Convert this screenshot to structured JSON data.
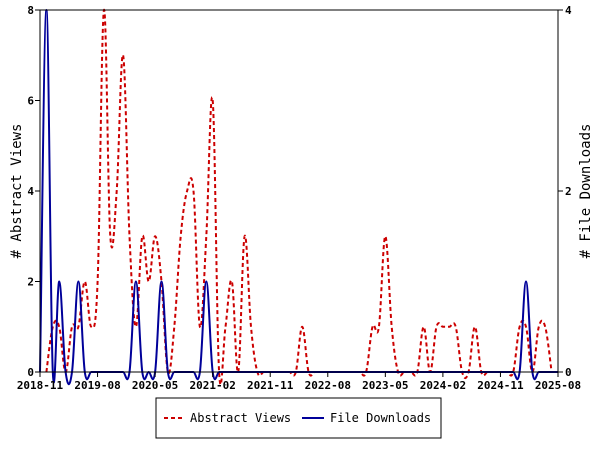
{
  "chart_data": {
    "type": "line",
    "x_tick_labels": [
      "2018-11",
      "2019-08",
      "2020-05",
      "2021-02",
      "2021-11",
      "2022-08",
      "2023-05",
      "2024-02",
      "2024-11",
      "2025-08"
    ],
    "y_left": {
      "label": "# Abstract Views",
      "ticks": [
        "0",
        "2",
        "4",
        "6",
        "8"
      ],
      "ylim": [
        0,
        8
      ]
    },
    "y_right": {
      "label": "# File Downloads",
      "ticks": [
        "0",
        "2",
        "4"
      ],
      "ylim": [
        0,
        4
      ]
    },
    "grid": false,
    "legend_position": "bottom",
    "series": [
      {
        "name": "Abstract Views",
        "axis": "left",
        "color": "#cc0000",
        "style": "dashed",
        "points": [
          [
            "2018-12",
            0
          ],
          [
            "2019-01",
            1
          ],
          [
            "2019-02",
            1
          ],
          [
            "2019-03",
            0
          ],
          [
            "2019-04",
            1
          ],
          [
            "2019-05",
            1
          ],
          [
            "2019-06",
            2
          ],
          [
            "2019-07",
            1
          ],
          [
            "2019-08",
            2
          ],
          [
            "2019-09",
            8
          ],
          [
            "2019-10",
            3
          ],
          [
            "2019-11",
            4
          ],
          [
            "2019-12",
            7
          ],
          [
            "2020-01",
            3
          ],
          [
            "2020-02",
            1
          ],
          [
            "2020-03",
            3
          ],
          [
            "2020-04",
            2
          ],
          [
            "2020-05",
            3
          ],
          [
            "2020-06",
            2
          ],
          [
            "2020-07",
            0
          ],
          [
            "2020-08",
            1
          ],
          [
            "2020-09",
            3
          ],
          [
            "2020-10",
            4
          ],
          [
            "2020-11",
            4
          ],
          [
            "2020-12",
            1
          ],
          [
            "2021-01",
            3
          ],
          [
            "2021-02",
            6
          ],
          [
            "2021-03",
            0
          ],
          [
            "2021-04",
            1
          ],
          [
            "2021-05",
            2
          ],
          [
            "2021-06",
            0
          ],
          [
            "2021-07",
            3
          ],
          [
            "2021-08",
            1
          ],
          [
            "2021-09",
            0
          ],
          [
            "2021-10",
            0
          ],
          [
            "2021-11",
            0
          ],
          [
            "2021-12",
            0
          ],
          [
            "2022-01",
            0
          ],
          [
            "2022-02",
            0
          ],
          [
            "2022-03",
            0
          ],
          [
            "2022-04",
            1
          ],
          [
            "2022-05",
            0
          ],
          [
            "2022-06",
            0
          ],
          [
            "2022-07",
            0
          ],
          [
            "2022-08",
            0
          ],
          [
            "2022-09",
            0
          ],
          [
            "2022-10",
            0
          ],
          [
            "2022-11",
            0
          ],
          [
            "2022-12",
            0
          ],
          [
            "2023-01",
            0
          ],
          [
            "2023-02",
            0
          ],
          [
            "2023-03",
            1
          ],
          [
            "2023-04",
            1
          ],
          [
            "2023-05",
            3
          ],
          [
            "2023-06",
            1
          ],
          [
            "2023-07",
            0
          ],
          [
            "2023-08",
            0
          ],
          [
            "2023-09",
            0
          ],
          [
            "2023-10",
            0
          ],
          [
            "2023-11",
            1
          ],
          [
            "2023-12",
            0
          ],
          [
            "2024-01",
            1
          ],
          [
            "2024-02",
            1
          ],
          [
            "2024-03",
            1
          ],
          [
            "2024-04",
            1
          ],
          [
            "2024-05",
            0
          ],
          [
            "2024-06",
            0
          ],
          [
            "2024-07",
            1
          ],
          [
            "2024-08",
            0
          ],
          [
            "2024-09",
            0
          ],
          [
            "2024-10",
            0
          ],
          [
            "2024-11",
            0
          ],
          [
            "2024-12",
            0
          ],
          [
            "2025-01",
            0
          ],
          [
            "2025-02",
            1
          ],
          [
            "2025-03",
            1
          ],
          [
            "2025-04",
            0
          ],
          [
            "2025-05",
            1
          ],
          [
            "2025-06",
            1
          ],
          [
            "2025-07",
            0
          ]
        ]
      },
      {
        "name": "File Downloads",
        "axis": "right",
        "color": "#000099",
        "style": "solid",
        "points": [
          [
            "2018-11",
            0
          ],
          [
            "2018-12",
            4
          ],
          [
            "2019-01",
            0
          ],
          [
            "2019-02",
            1
          ],
          [
            "2019-03",
            0
          ],
          [
            "2019-04",
            0
          ],
          [
            "2019-05",
            1
          ],
          [
            "2019-06",
            0
          ],
          [
            "2019-07",
            0
          ],
          [
            "2019-08",
            0
          ],
          [
            "2019-09",
            0
          ],
          [
            "2019-10",
            0
          ],
          [
            "2019-11",
            0
          ],
          [
            "2019-12",
            0
          ],
          [
            "2020-01",
            0
          ],
          [
            "2020-02",
            1
          ],
          [
            "2020-03",
            0
          ],
          [
            "2020-04",
            0
          ],
          [
            "2020-05",
            0
          ],
          [
            "2020-06",
            1
          ],
          [
            "2020-07",
            0
          ],
          [
            "2020-08",
            0
          ],
          [
            "2020-09",
            0
          ],
          [
            "2020-10",
            0
          ],
          [
            "2020-11",
            0
          ],
          [
            "2020-12",
            0
          ],
          [
            "2021-01",
            1
          ],
          [
            "2021-02",
            0
          ],
          [
            "2021-03",
            0
          ],
          [
            "2021-04",
            0
          ],
          [
            "2021-05",
            0
          ],
          [
            "2021-06",
            0
          ],
          [
            "2021-07",
            0
          ],
          [
            "2021-08",
            0
          ],
          [
            "2021-09",
            0
          ],
          [
            "2021-10",
            0
          ],
          [
            "2021-11",
            0
          ],
          [
            "2021-12",
            0
          ],
          [
            "2022-01",
            0
          ],
          [
            "2022-02",
            0
          ],
          [
            "2022-03",
            0
          ],
          [
            "2022-04",
            0
          ],
          [
            "2022-05",
            0
          ],
          [
            "2022-06",
            0
          ],
          [
            "2022-07",
            0
          ],
          [
            "2022-08",
            0
          ],
          [
            "2022-09",
            0
          ],
          [
            "2022-10",
            0
          ],
          [
            "2022-11",
            0
          ],
          [
            "2022-12",
            0
          ],
          [
            "2023-01",
            0
          ],
          [
            "2023-02",
            0
          ],
          [
            "2023-03",
            0
          ],
          [
            "2023-04",
            0
          ],
          [
            "2023-05",
            0
          ],
          [
            "2023-06",
            0
          ],
          [
            "2023-07",
            0
          ],
          [
            "2023-08",
            0
          ],
          [
            "2023-09",
            0
          ],
          [
            "2023-10",
            0
          ],
          [
            "2023-11",
            0
          ],
          [
            "2023-12",
            0
          ],
          [
            "2024-01",
            0
          ],
          [
            "2024-02",
            0
          ],
          [
            "2024-03",
            0
          ],
          [
            "2024-04",
            0
          ],
          [
            "2024-05",
            0
          ],
          [
            "2024-06",
            0
          ],
          [
            "2024-07",
            0
          ],
          [
            "2024-08",
            0
          ],
          [
            "2024-09",
            0
          ],
          [
            "2024-10",
            0
          ],
          [
            "2024-11",
            0
          ],
          [
            "2024-12",
            0
          ],
          [
            "2025-01",
            0
          ],
          [
            "2025-02",
            0
          ],
          [
            "2025-03",
            1
          ],
          [
            "2025-04",
            0
          ],
          [
            "2025-05",
            0
          ],
          [
            "2025-06",
            0
          ],
          [
            "2025-07",
            0
          ],
          [
            "2025-08",
            0
          ]
        ]
      }
    ]
  }
}
